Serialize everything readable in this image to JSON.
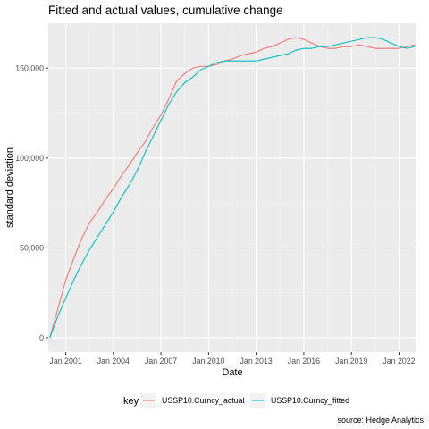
{
  "chart_data": {
    "type": "line",
    "title": "Fitted and actual values, cumulative change",
    "xlabel": "Date",
    "ylabel": "standard deviation",
    "caption": "source: Hedge Analytics",
    "legend": {
      "title": "key",
      "position": "bottom"
    },
    "grid": true,
    "xlim": [
      1999.9,
      2023.1
    ],
    "ylim": [
      -8000,
      175000
    ],
    "x_ticks": [
      {
        "value": 2001.0,
        "label": "Jan 2001"
      },
      {
        "value": 2004.0,
        "label": "Jan 2004"
      },
      {
        "value": 2007.0,
        "label": "Jan 2007"
      },
      {
        "value": 2010.0,
        "label": "Jan 2010"
      },
      {
        "value": 2013.0,
        "label": "Jan 2013"
      },
      {
        "value": 2016.0,
        "label": "Jan 2016"
      },
      {
        "value": 2019.0,
        "label": "Jan 2019"
      },
      {
        "value": 2022.0,
        "label": "Jan 2022"
      }
    ],
    "y_ticks": [
      {
        "value": 0,
        "label": "0"
      },
      {
        "value": 50000,
        "label": "50,000"
      },
      {
        "value": 100000,
        "label": "100,000"
      },
      {
        "value": 150000,
        "label": "150,000"
      }
    ],
    "series": [
      {
        "name": "USSP10.Curncy_actual",
        "color": "#F8766D",
        "x": [
          2000.0,
          2000.5,
          2001.0,
          2001.5,
          2002.0,
          2002.5,
          2003.0,
          2003.5,
          2004.0,
          2004.5,
          2005.0,
          2005.5,
          2006.0,
          2006.5,
          2007.0,
          2007.5,
          2008.0,
          2008.5,
          2009.0,
          2009.5,
          2010.0,
          2010.5,
          2011.0,
          2011.5,
          2012.0,
          2012.5,
          2013.0,
          2013.5,
          2014.0,
          2014.5,
          2015.0,
          2015.5,
          2016.0,
          2016.5,
          2017.0,
          2017.5,
          2018.0,
          2018.5,
          2019.0,
          2019.5,
          2020.0,
          2020.5,
          2021.0,
          2021.5,
          2022.0,
          2022.5,
          2023.0
        ],
        "values": [
          0,
          16000,
          32000,
          44000,
          55000,
          64000,
          70000,
          77000,
          83000,
          90000,
          96000,
          103000,
          109000,
          117000,
          124000,
          133000,
          143000,
          147000,
          150000,
          151000,
          151000,
          152000,
          154000,
          155000,
          157000,
          158000,
          159000,
          161000,
          162000,
          164000,
          166000,
          167000,
          166000,
          164000,
          162000,
          161000,
          161000,
          162000,
          162000,
          163000,
          162000,
          161000,
          161000,
          161000,
          161000,
          162000,
          163000
        ]
      },
      {
        "name": "USSP10.Curncy_fitted",
        "color": "#00BFC4",
        "x": [
          2000.0,
          2000.5,
          2001.0,
          2001.5,
          2002.0,
          2002.5,
          2003.0,
          2003.5,
          2004.0,
          2004.5,
          2005.0,
          2005.5,
          2006.0,
          2006.5,
          2007.0,
          2007.5,
          2008.0,
          2008.5,
          2009.0,
          2009.5,
          2010.0,
          2010.5,
          2011.0,
          2011.5,
          2012.0,
          2012.5,
          2013.0,
          2013.5,
          2014.0,
          2014.5,
          2015.0,
          2015.5,
          2016.0,
          2016.5,
          2017.0,
          2017.5,
          2018.0,
          2018.5,
          2019.0,
          2019.5,
          2020.0,
          2020.5,
          2021.0,
          2021.5,
          2022.0,
          2022.5,
          2023.0
        ],
        "values": [
          0,
          12000,
          22000,
          32000,
          41000,
          49000,
          56000,
          63000,
          70000,
          78000,
          85000,
          93000,
          103000,
          112000,
          121000,
          130000,
          137000,
          142000,
          145000,
          149000,
          151000,
          153000,
          154000,
          154000,
          154000,
          154000,
          154000,
          155000,
          156000,
          157000,
          158000,
          160000,
          161000,
          161000,
          162000,
          162000,
          163000,
          164000,
          165000,
          166000,
          167000,
          167000,
          166000,
          164000,
          162000,
          161000,
          162000
        ]
      }
    ]
  }
}
